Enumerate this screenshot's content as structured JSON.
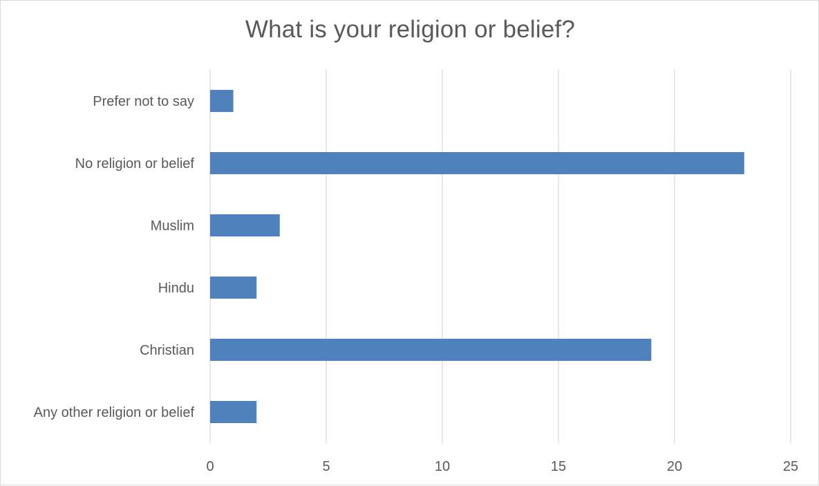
{
  "chart_data": {
    "type": "bar",
    "orientation": "horizontal",
    "title": "What is your religion or belief?",
    "categories": [
      "Any other religion or belief",
      "Christian",
      "Hindu",
      "Muslim",
      "No religion or belief",
      "Prefer not to say"
    ],
    "values": [
      2,
      19,
      2,
      3,
      23,
      1
    ],
    "xlim": [
      0,
      25
    ],
    "xticks": [
      0,
      5,
      10,
      15,
      20,
      25
    ],
    "xlabel": "",
    "ylabel": "",
    "grid": "vertical",
    "legend": "none",
    "bar_color": "#4f81bd"
  }
}
